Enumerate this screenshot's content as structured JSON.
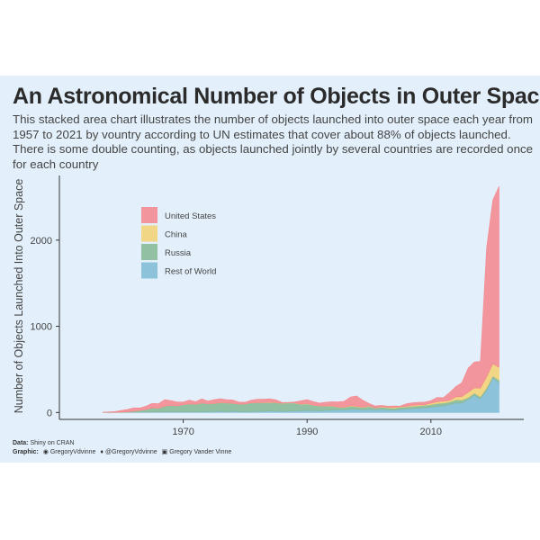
{
  "title": "An Astronomical Number of Objects in Outer Space",
  "subtitle": "This stacked area chart illustrates the number of objects launched into outer space each year from 1957 to 2021 by vountry according to UN estimates that cover about 88% of objects launched. There is some double counting, as objects launched jointly by several countries are recorded once for each country",
  "footer": {
    "data_label": "Data:",
    "data_value": "Shiny on CRAN",
    "graphic_label": "Graphic:",
    "github": "GregoryVdvinne",
    "twitter": "@GregoryVdvinne",
    "linkedin": "Gregory Vander Vinne",
    "github_icon": "github-icon",
    "twitter_icon": "twitter-icon",
    "linkedin_icon": "linkedin-icon"
  },
  "chart_data": {
    "type": "area",
    "stacked": true,
    "title": "An Astronomical Number of Objects in Outer Space",
    "xlabel": "",
    "ylabel": "Number of Objects Launched Into Outer Space",
    "x_ticks": [
      1970,
      1990,
      2010
    ],
    "y_ticks": [
      0,
      1000,
      2000
    ],
    "xlim": [
      1950,
      2025
    ],
    "ylim": [
      -80,
      2750
    ],
    "legend_position": "top-left",
    "x": [
      1957,
      1958,
      1959,
      1960,
      1961,
      1962,
      1963,
      1964,
      1965,
      1966,
      1967,
      1968,
      1969,
      1970,
      1971,
      1972,
      1973,
      1974,
      1975,
      1976,
      1977,
      1978,
      1979,
      1980,
      1981,
      1982,
      1983,
      1984,
      1985,
      1986,
      1987,
      1988,
      1989,
      1990,
      1991,
      1992,
      1993,
      1994,
      1995,
      1996,
      1997,
      1998,
      1999,
      2000,
      2001,
      2002,
      2003,
      2004,
      2005,
      2006,
      2007,
      2008,
      2009,
      2010,
      2011,
      2012,
      2013,
      2014,
      2015,
      2016,
      2017,
      2018,
      2019,
      2020,
      2021
    ],
    "series": [
      {
        "name": "Rest of World",
        "color": "#7fbcd6",
        "values": [
          0,
          0,
          0,
          0,
          2,
          2,
          3,
          4,
          6,
          6,
          7,
          8,
          8,
          8,
          10,
          8,
          10,
          12,
          12,
          14,
          12,
          15,
          12,
          10,
          14,
          12,
          16,
          18,
          16,
          14,
          16,
          18,
          20,
          25,
          22,
          20,
          24,
          28,
          30,
          32,
          35,
          38,
          30,
          36,
          30,
          35,
          32,
          28,
          34,
          40,
          45,
          50,
          55,
          60,
          70,
          80,
          90,
          110,
          110,
          150,
          200,
          160,
          260,
          400,
          350
        ]
      },
      {
        "name": "Russia",
        "color": "#86b896",
        "values": [
          2,
          1,
          3,
          4,
          6,
          12,
          20,
          30,
          48,
          44,
          66,
          74,
          70,
          81,
          90,
          86,
          100,
          89,
          91,
          99,
          98,
          90,
          87,
          89,
          98,
          101,
          98,
          97,
          98,
          91,
          95,
          90,
          74,
          75,
          62,
          55,
          50,
          46,
          32,
          27,
          39,
          28,
          28,
          36,
          23,
          25,
          24,
          22,
          26,
          25,
          26,
          27,
          29,
          31,
          35,
          30,
          32,
          37,
          35,
          23,
          25,
          22,
          24,
          25,
          25
        ]
      },
      {
        "name": "China",
        "color": "#f3d275",
        "values": [
          0,
          0,
          0,
          0,
          0,
          0,
          0,
          0,
          0,
          0,
          0,
          0,
          0,
          1,
          1,
          0,
          0,
          0,
          2,
          2,
          1,
          1,
          0,
          0,
          3,
          1,
          2,
          3,
          1,
          2,
          2,
          4,
          2,
          5,
          1,
          2,
          1,
          5,
          2,
          3,
          6,
          6,
          4,
          5,
          1,
          5,
          6,
          10,
          5,
          6,
          11,
          11,
          6,
          16,
          20,
          22,
          17,
          33,
          40,
          60,
          60,
          100,
          130,
          140,
          150
        ]
      },
      {
        "name": "United States",
        "color": "#f4888e",
        "values": [
          1,
          6,
          8,
          20,
          28,
          40,
          30,
          40,
          52,
          52,
          76,
          56,
          44,
          32,
          44,
          32,
          48,
          32,
          44,
          44,
          39,
          40,
          22,
          20,
          30,
          40,
          38,
          40,
          32,
          8,
          4,
          10,
          40,
          44,
          42,
          32,
          44,
          46,
          60,
          68,
          100,
          120,
          80,
          28,
          22,
          18,
          12,
          16,
          8,
          30,
          30,
          30,
          30,
          30,
          50,
          40,
          90,
          120,
          160,
          280,
          300,
          310,
          1500,
          1900,
          2100
        ]
      }
    ]
  }
}
